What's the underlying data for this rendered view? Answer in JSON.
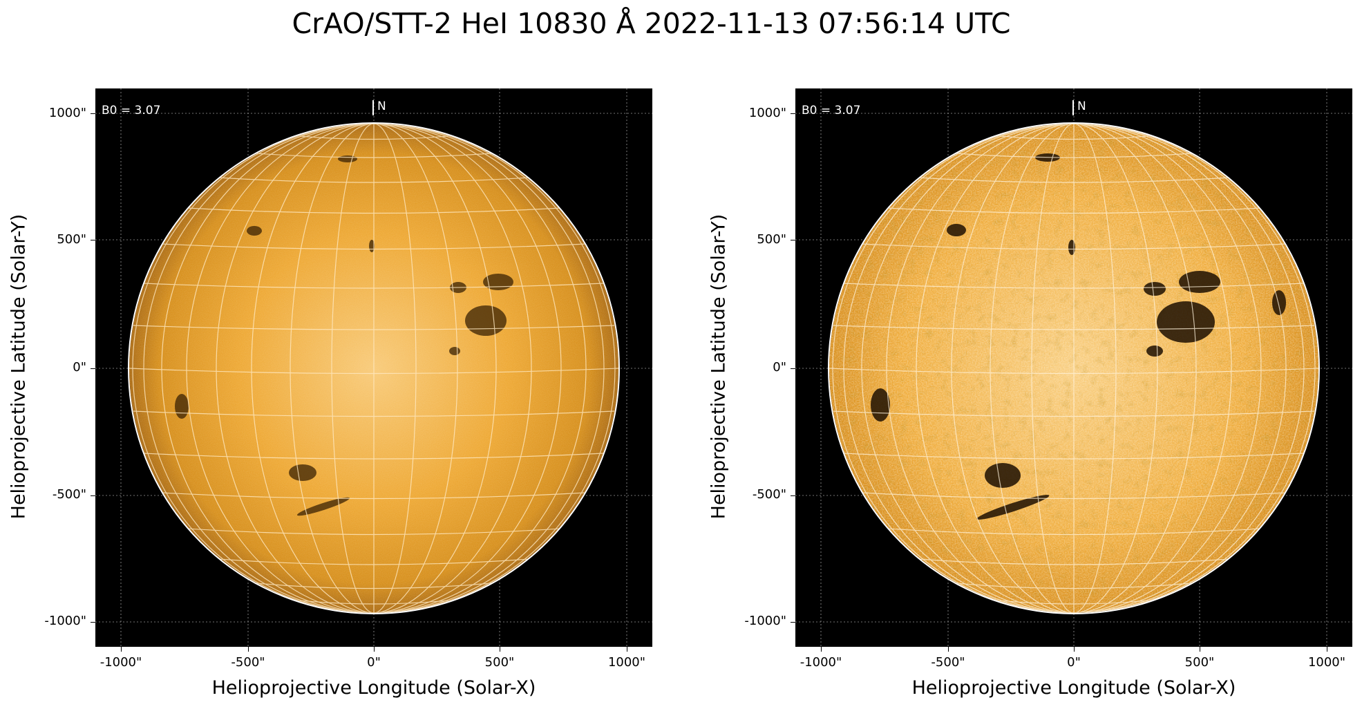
{
  "figure": {
    "title": "CrAO/STT-2 HeI 10830 Å 2022-11-13 07:56:14 UTC"
  },
  "panels": [
    {
      "b0_label": "B0 = 3.07",
      "north_label": "N",
      "xlabel": "Helioprojective Longitude (Solar-X)",
      "ylabel": "Helioprojective Latitude (Solar-Y)",
      "x_ticks": [
        "-1000\"",
        "-500\"",
        "0\"",
        "500\"",
        "1000\""
      ],
      "y_ticks": [
        "1000\"",
        "500\"",
        "0\"",
        "-500\"",
        "-1000\""
      ],
      "contrast": "normal"
    },
    {
      "b0_label": "B0 = 3.07",
      "north_label": "N",
      "xlabel": "Helioprojective Longitude (Solar-X)",
      "ylabel": "Helioprojective Latitude (Solar-Y)",
      "x_ticks": [
        "-1000\"",
        "-500\"",
        "0\"",
        "500\"",
        "1000\""
      ],
      "y_ticks": [
        "1000\"",
        "500\"",
        "0\"",
        "-500\"",
        "-1000\""
      ],
      "contrast": "enhanced"
    }
  ],
  "colors": {
    "disk_center": "#f7c062",
    "disk_mid": "#e59a1c",
    "disk_limb": "#b06a08",
    "background": "#000000",
    "grid": "#ffffff"
  }
}
